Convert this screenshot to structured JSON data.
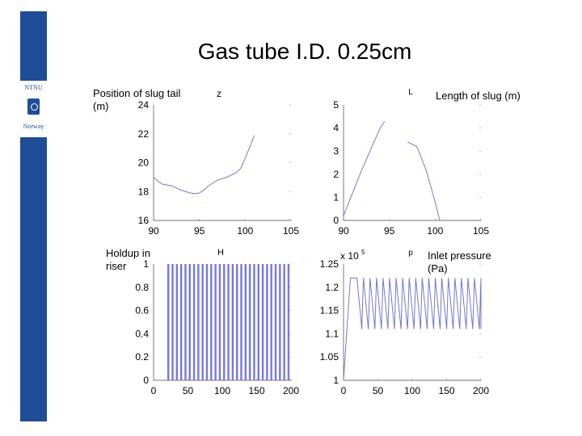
{
  "slide": {
    "title": "Gas tube I.D. 0.25cm",
    "accent_color": "#1f4e96",
    "logo": {
      "top_text": "NTNU",
      "bottom_text": "Norway",
      "icon": "ntnu-logo-icon"
    }
  },
  "chart_data": [
    {
      "type": "line",
      "label": "Position of slug tail (m)",
      "plot_letter": "z",
      "xlim": [
        90,
        105
      ],
      "ylim": [
        16,
        24
      ],
      "xticks": [
        "90",
        "95",
        "100",
        "105"
      ],
      "yticks": [
        "16",
        "18",
        "20",
        "22",
        "24"
      ],
      "series": [
        {
          "color": "#7777cc",
          "x": [
            90,
            90.5,
            91,
            92,
            93,
            94,
            94.5,
            95,
            95.5,
            96,
            96.5,
            97,
            98,
            99,
            99.5,
            100,
            100.5,
            101
          ],
          "y": [
            19.0,
            18.7,
            18.5,
            18.4,
            18.1,
            17.9,
            17.85,
            17.9,
            18.1,
            18.4,
            18.6,
            18.8,
            19.0,
            19.3,
            19.6,
            20.3,
            21.1,
            21.9
          ]
        }
      ]
    },
    {
      "type": "line",
      "label": "Length of slug (m)",
      "plot_letter": "L",
      "xlim": [
        90,
        105
      ],
      "ylim": [
        0,
        5
      ],
      "xticks": [
        "90",
        "95",
        "100",
        "105"
      ],
      "yticks": [
        "0",
        "1",
        "2",
        "3",
        "4",
        "5"
      ],
      "series": [
        {
          "color": "#7777cc",
          "x": [
            90,
            91,
            92,
            93,
            94,
            94.5
          ],
          "y": [
            0.2,
            1.2,
            2.2,
            3.1,
            4.0,
            4.3
          ]
        },
        {
          "color": "#7777cc",
          "x": [
            97,
            98,
            99,
            100,
            100.5
          ],
          "y": [
            3.4,
            3.2,
            2.2,
            0.8,
            0.0
          ]
        }
      ]
    },
    {
      "type": "line",
      "label": "Holdup in riser",
      "plot_letter": "H",
      "xlim": [
        0,
        200
      ],
      "ylim": [
        0,
        1
      ],
      "xticks": [
        "0",
        "50",
        "100",
        "150",
        "200"
      ],
      "yticks": [
        "0",
        "0.2",
        "0.4",
        "0.6",
        "0.8",
        "1"
      ],
      "oscillation": {
        "color": "#7777dd",
        "x_start": 20,
        "x_end": 200,
        "period": 6.25,
        "high": 1.0,
        "low": 0.0
      }
    },
    {
      "type": "line",
      "label": "Inlet pressure (Pa)",
      "plot_letter": "p",
      "exponent_label": "x 10",
      "exponent": "5",
      "xlim": [
        0,
        200
      ],
      "ylim": [
        1,
        1.25
      ],
      "xticks": [
        "0",
        "50",
        "100",
        "150",
        "200"
      ],
      "yticks": [
        "1",
        "1.05",
        "1.1",
        "1.15",
        "1.2",
        "1.25"
      ],
      "oscillation": {
        "color": "#7777cc",
        "x_start": 10,
        "x_end": 200,
        "period": 9.5,
        "high": 1.22,
        "low": 1.11,
        "start_value": 1.0
      }
    }
  ]
}
